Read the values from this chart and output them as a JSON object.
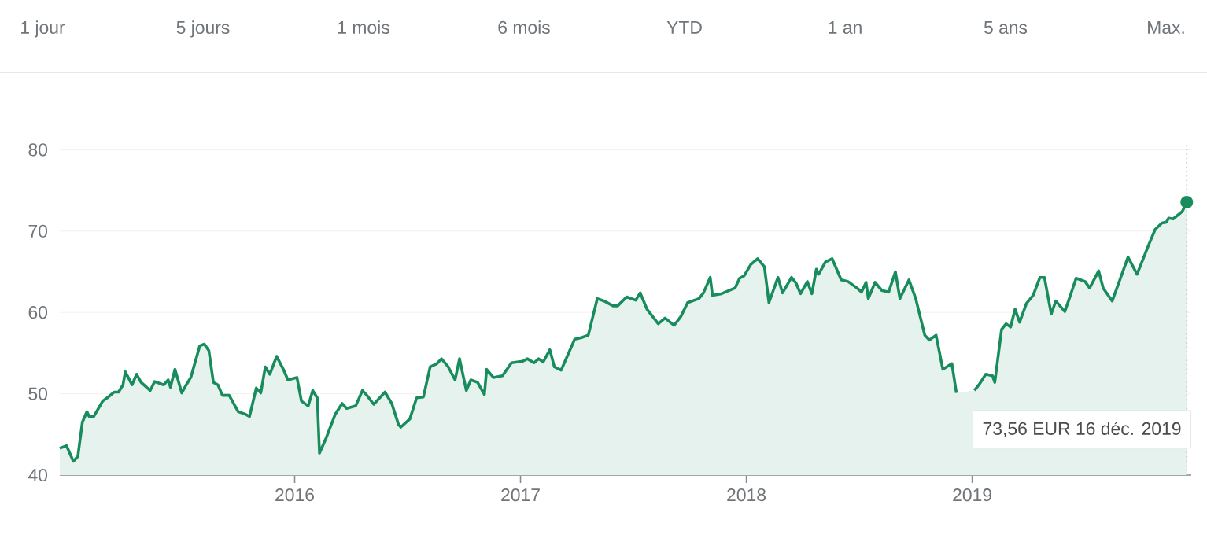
{
  "chart_data": {
    "type": "area",
    "color": "#188c5c",
    "x": [
      2014.96,
      2014.99,
      2015.02,
      2015.04,
      2015.06,
      2015.08,
      2015.09,
      2015.11,
      2015.15,
      2015.17,
      2015.2,
      2015.22,
      2015.24,
      2015.25,
      2015.28,
      2015.3,
      2015.32,
      2015.36,
      2015.38,
      2015.42,
      2015.44,
      2015.45,
      2015.47,
      2015.5,
      2015.52,
      2015.54,
      2015.58,
      2015.6,
      2015.62,
      2015.64,
      2015.66,
      2015.68,
      2015.71,
      2015.75,
      2015.78,
      2015.8,
      2015.83,
      2015.85,
      2015.87,
      2015.89,
      2015.92,
      2015.95,
      2015.97,
      2016.01,
      2016.03,
      2016.06,
      2016.08,
      2016.1,
      2016.11,
      2016.14,
      2016.18,
      2016.21,
      2016.23,
      2016.27,
      2016.3,
      2016.32,
      2016.35,
      2016.4,
      2016.43,
      2016.46,
      2016.47,
      2016.51,
      2016.54,
      2016.57,
      2016.6,
      2016.63,
      2016.65,
      2016.68,
      2016.71,
      2016.73,
      2016.76,
      2016.78,
      2016.81,
      2016.84,
      2016.85,
      2016.88,
      2016.92,
      2016.96,
      2017.01,
      2017.03,
      2017.06,
      2017.08,
      2017.1,
      2017.13,
      2017.15,
      2017.18,
      2017.24,
      2017.27,
      2017.3,
      2017.34,
      2017.37,
      2017.41,
      2017.43,
      2017.47,
      2017.51,
      2017.53,
      2017.56,
      2017.61,
      2017.64,
      2017.68,
      2017.71,
      2017.74,
      2017.79,
      2017.81,
      2017.84,
      2017.85,
      2017.89,
      2017.95,
      2017.97,
      2017.99,
      2018.02,
      2018.05,
      2018.08,
      2018.1,
      2018.14,
      2018.16,
      2018.2,
      2018.22,
      2018.24,
      2018.27,
      2018.29,
      2018.31,
      2018.32,
      2018.35,
      2018.38,
      2018.42,
      2018.45,
      2018.49,
      2018.51,
      2018.53,
      2018.54,
      2018.57,
      2018.6,
      2018.63,
      2018.66,
      2018.68,
      2018.72,
      2018.75,
      2018.79,
      2018.81,
      2018.84,
      2018.87,
      2018.91,
      2018.93,
      2018.97,
      2019.01,
      2019.03,
      2019.06,
      2019.09,
      2019.1,
      2019.13,
      2019.15,
      2019.17,
      2019.19,
      2019.21,
      2019.24,
      2019.27,
      2019.3,
      2019.32,
      2019.35,
      2019.37,
      2019.41,
      2019.43,
      2019.46,
      2019.5,
      2019.52,
      2019.56,
      2019.58,
      2019.62,
      2019.65,
      2019.69,
      2019.73,
      2019.78,
      2019.81,
      2019.84,
      2019.86,
      2019.87,
      2019.89,
      2019.93,
      2019.95
    ],
    "values": [
      43.3,
      43.6,
      41.7,
      42.3,
      46.5,
      47.8,
      47.2,
      47.2,
      49.1,
      49.5,
      50.2,
      50.2,
      51.1,
      52.7,
      51.1,
      52.4,
      51.4,
      50.4,
      51.5,
      51.1,
      51.7,
      50.8,
      53.0,
      50.1,
      51.1,
      52.0,
      55.9,
      56.1,
      55.3,
      51.4,
      51.1,
      49.8,
      49.8,
      47.8,
      47.5,
      47.2,
      50.7,
      50.1,
      53.3,
      52.4,
      54.6,
      53.0,
      51.7,
      52.0,
      49.1,
      48.5,
      50.4,
      49.5,
      42.7,
      44.6,
      47.5,
      48.8,
      48.2,
      48.5,
      50.4,
      49.8,
      48.7,
      50.2,
      48.8,
      46.2,
      45.9,
      46.9,
      49.5,
      49.6,
      53.3,
      53.7,
      54.3,
      53.3,
      51.7,
      54.3,
      50.4,
      51.7,
      51.4,
      49.9,
      53.0,
      52.0,
      52.2,
      53.8,
      54.0,
      54.3,
      53.8,
      54.3,
      53.9,
      55.4,
      53.3,
      52.9,
      56.7,
      56.9,
      57.2,
      61.7,
      61.4,
      60.8,
      60.8,
      61.9,
      61.5,
      62.4,
      60.4,
      58.6,
      59.3,
      58.4,
      59.5,
      61.2,
      61.7,
      62.4,
      64.3,
      62.1,
      62.3,
      63.0,
      64.2,
      64.5,
      65.9,
      66.6,
      65.6,
      61.2,
      64.3,
      62.4,
      64.3,
      63.6,
      62.3,
      63.8,
      62.3,
      65.3,
      64.7,
      66.2,
      66.6,
      64.0,
      63.8,
      63.0,
      62.5,
      63.7,
      61.7,
      63.7,
      62.7,
      62.5,
      65.0,
      61.7,
      64.0,
      61.7,
      57.2,
      56.6,
      57.2,
      53.0,
      53.7,
      50.1,
      null,
      50.4,
      51.1,
      52.4,
      52.2,
      51.4,
      57.9,
      58.6,
      58.2,
      60.4,
      58.8,
      61.1,
      62.1,
      64.3,
      64.3,
      59.8,
      61.4,
      60.1,
      61.7,
      64.2,
      63.8,
      63.0,
      65.1,
      63.0,
      61.4,
      63.7,
      66.8,
      64.7,
      68.2,
      70.2,
      71.0,
      71.1,
      71.6,
      71.5,
      72.4,
      73.56
    ],
    "xlim": [
      2014.96,
      2019.97
    ],
    "xticks": [
      2016,
      2017,
      2018,
      2019
    ],
    "ref_lines": [
      {
        "axis": "x",
        "value": 2019.95,
        "color": "#b2b2b2",
        "line_style": "dotted"
      }
    ],
    "ylim": [
      40,
      81
    ],
    "yticks": [
      40,
      50,
      60,
      70,
      80
    ],
    "grid": "y",
    "annotations": [
      "1 jour",
      "5 jours",
      "1 mois",
      "6 mois",
      "YTD",
      "1 an",
      "5 ans",
      "Max.",
      "73,56 EUR  16 déc. 2019"
    ]
  }
}
